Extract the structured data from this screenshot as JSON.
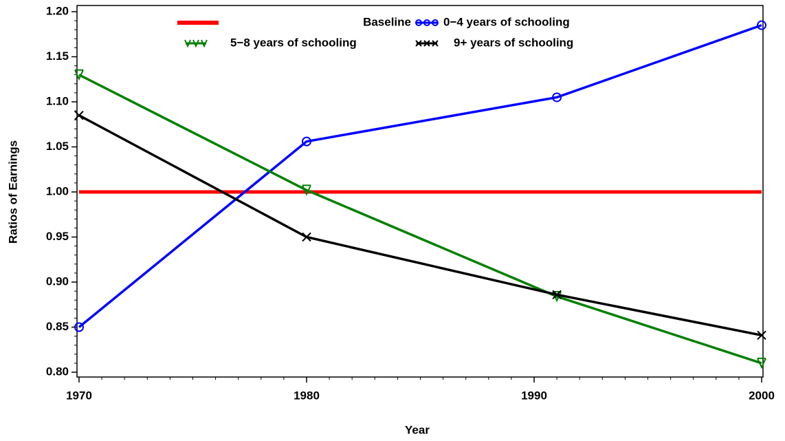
{
  "chart_data": {
    "type": "line",
    "x_label": "Year",
    "y_label": "Ratios of Earnings",
    "x": [
      1970,
      1980,
      1991,
      2000
    ],
    "series": [
      {
        "name": "Baseline",
        "color": "#ff0000",
        "marker": "none",
        "values": [
          1.0,
          1.0,
          1.0,
          1.0
        ]
      },
      {
        "name": "0−4 years of schooling",
        "color": "#0000ff",
        "marker": "circle",
        "values": [
          0.85,
          1.056,
          1.105,
          1.185
        ]
      },
      {
        "name": "5−8 years of schooling",
        "color": "#008000",
        "marker": "v",
        "values": [
          1.13,
          1.002,
          0.884,
          0.81
        ]
      },
      {
        "name": "9+ years of schooling",
        "color": "#000000",
        "marker": "x",
        "values": [
          1.085,
          0.95,
          0.886,
          0.841
        ]
      }
    ],
    "xlim": [
      1970,
      2000
    ],
    "xticks": [
      1970,
      1980,
      1990,
      2000
    ],
    "ylim": [
      0.8,
      1.2
    ],
    "yticks": [
      {
        "value": 0.8,
        "label": "0.80"
      },
      {
        "value": 0.85,
        "label": "0.85"
      },
      {
        "value": 0.9,
        "label": "0.90"
      },
      {
        "value": 0.95,
        "label": "0.95"
      },
      {
        "value": 1.0,
        "label": "1.00"
      },
      {
        "value": 1.05,
        "label": "1.05"
      },
      {
        "value": 1.1,
        "label": "1.10"
      },
      {
        "value": 1.15,
        "label": "1.15"
      },
      {
        "value": 1.2,
        "label": "1.20"
      }
    ]
  }
}
